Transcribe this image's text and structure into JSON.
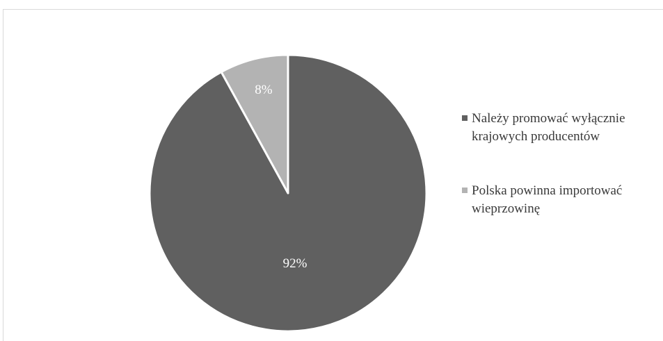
{
  "chart_data": {
    "type": "pie",
    "title": "",
    "slices": [
      {
        "label": "Należy promować wyłącznie krajowych producentów",
        "value": 92,
        "display": "92%",
        "color": "#606060"
      },
      {
        "label": "Polska powinna importować wieprzowinę",
        "value": 8,
        "display": "8%",
        "color": "#b3b3b3"
      }
    ],
    "legend_position": "right"
  }
}
